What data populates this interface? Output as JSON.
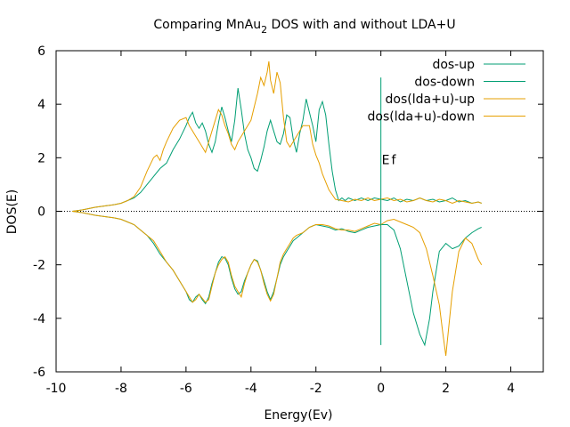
{
  "chart_data": {
    "type": "line",
    "title_main": "Comparing MnAu",
    "title_sub": "2",
    "title_rest": " DOS with and without LDA+U",
    "xlabel": "Energy(Ev)",
    "ylabel": "DOS(E)",
    "xlim": [
      -10,
      5
    ],
    "ylim": [
      -6,
      6
    ],
    "xticks": [
      "-10",
      "-8",
      "-6",
      "-4",
      "-2",
      "0",
      "2",
      "4"
    ],
    "yticks": [
      "-6",
      "-4",
      "-2",
      "0",
      "2",
      "4",
      "6"
    ],
    "grid": false,
    "legend_position": "top-right",
    "fermi_label": "Ef",
    "fermi_line": {
      "x": 0,
      "y_from": -5,
      "y_to": 5,
      "color": "#009e73"
    },
    "zero_line": {
      "y": 0,
      "style": "dotted",
      "color": "#000000"
    },
    "series": [
      {
        "name": "dos-up",
        "color": "#009e73",
        "x": [
          -9.5,
          -9.2,
          -9.0,
          -8.8,
          -8.5,
          -8.2,
          -8.0,
          -7.8,
          -7.6,
          -7.4,
          -7.2,
          -7.0,
          -6.8,
          -6.6,
          -6.4,
          -6.2,
          -6.0,
          -5.9,
          -5.8,
          -5.7,
          -5.6,
          -5.5,
          -5.4,
          -5.3,
          -5.2,
          -5.1,
          -5.0,
          -4.9,
          -4.8,
          -4.7,
          -4.6,
          -4.5,
          -4.4,
          -4.3,
          -4.2,
          -4.1,
          -4.0,
          -3.9,
          -3.8,
          -3.7,
          -3.6,
          -3.5,
          -3.4,
          -3.3,
          -3.2,
          -3.1,
          -3.0,
          -2.9,
          -2.8,
          -2.7,
          -2.6,
          -2.5,
          -2.4,
          -2.3,
          -2.2,
          -2.1,
          -2.0,
          -1.9,
          -1.8,
          -1.7,
          -1.6,
          -1.5,
          -1.4,
          -1.3,
          -1.2,
          -1.1,
          -1.0,
          -0.8,
          -0.6,
          -0.4,
          -0.2,
          0.0,
          0.2,
          0.4,
          0.6,
          0.8,
          1.0,
          1.2,
          1.4,
          1.6,
          1.8,
          2.0,
          2.2,
          2.4,
          2.6,
          2.8,
          3.0,
          3.1
        ],
        "values": [
          0.0,
          0.05,
          0.1,
          0.15,
          0.2,
          0.25,
          0.3,
          0.4,
          0.5,
          0.7,
          1.0,
          1.3,
          1.6,
          1.8,
          2.3,
          2.7,
          3.2,
          3.5,
          3.7,
          3.3,
          3.1,
          3.3,
          3.0,
          2.5,
          2.2,
          2.6,
          3.3,
          3.9,
          3.5,
          3.0,
          2.6,
          3.4,
          4.6,
          3.8,
          2.9,
          2.3,
          2.0,
          1.6,
          1.5,
          1.9,
          2.4,
          3.0,
          3.4,
          3.0,
          2.6,
          2.5,
          2.9,
          3.6,
          3.5,
          2.7,
          2.2,
          2.9,
          3.4,
          4.2,
          3.7,
          3.2,
          2.6,
          3.8,
          4.1,
          3.6,
          2.5,
          1.5,
          0.8,
          0.4,
          0.5,
          0.4,
          0.5,
          0.4,
          0.5,
          0.4,
          0.5,
          0.45,
          0.4,
          0.5,
          0.35,
          0.45,
          0.4,
          0.5,
          0.4,
          0.45,
          0.35,
          0.4,
          0.5,
          0.35,
          0.4,
          0.3,
          0.35,
          0.3
        ]
      },
      {
        "name": "dos-down",
        "color": "#009e73",
        "x": [
          -9.5,
          -9.2,
          -9.0,
          -8.8,
          -8.5,
          -8.2,
          -8.0,
          -7.8,
          -7.6,
          -7.4,
          -7.2,
          -7.0,
          -6.8,
          -6.6,
          -6.4,
          -6.2,
          -6.0,
          -5.9,
          -5.8,
          -5.7,
          -5.6,
          -5.5,
          -5.4,
          -5.3,
          -5.2,
          -5.1,
          -5.0,
          -4.9,
          -4.8,
          -4.7,
          -4.6,
          -4.5,
          -4.4,
          -4.3,
          -4.2,
          -4.1,
          -4.0,
          -3.9,
          -3.8,
          -3.7,
          -3.6,
          -3.5,
          -3.4,
          -3.3,
          -3.2,
          -3.1,
          -3.0,
          -2.9,
          -2.8,
          -2.7,
          -2.6,
          -2.4,
          -2.2,
          -2.0,
          -1.8,
          -1.6,
          -1.4,
          -1.2,
          -1.0,
          -0.8,
          -0.6,
          -0.4,
          -0.2,
          0.0,
          0.2,
          0.4,
          0.6,
          0.8,
          1.0,
          1.2,
          1.35,
          1.5,
          1.6,
          1.8,
          2.0,
          2.2,
          2.4,
          2.6,
          2.8,
          3.0,
          3.1
        ],
        "values": [
          0.0,
          -0.05,
          -0.1,
          -0.15,
          -0.2,
          -0.25,
          -0.3,
          -0.4,
          -0.5,
          -0.7,
          -0.9,
          -1.2,
          -1.6,
          -1.9,
          -2.2,
          -2.6,
          -3.0,
          -3.3,
          -3.4,
          -3.2,
          -3.1,
          -3.3,
          -3.45,
          -3.2,
          -2.7,
          -2.3,
          -1.9,
          -1.7,
          -1.75,
          -2.0,
          -2.5,
          -2.9,
          -3.1,
          -3.0,
          -2.6,
          -2.3,
          -2.0,
          -1.8,
          -1.85,
          -2.2,
          -2.6,
          -3.0,
          -3.3,
          -3.0,
          -2.5,
          -2.0,
          -1.7,
          -1.5,
          -1.3,
          -1.1,
          -1.0,
          -0.8,
          -0.6,
          -0.5,
          -0.55,
          -0.6,
          -0.7,
          -0.65,
          -0.75,
          -0.8,
          -0.7,
          -0.6,
          -0.55,
          -0.5,
          -0.5,
          -0.7,
          -1.4,
          -2.6,
          -3.8,
          -4.6,
          -5.0,
          -4.0,
          -3.0,
          -1.5,
          -1.2,
          -1.4,
          -1.3,
          -1.0,
          -0.8,
          -0.65,
          -0.6
        ]
      },
      {
        "name": "dos(lda+u)-up",
        "color": "#e69f00",
        "x": [
          -9.5,
          -9.2,
          -9.0,
          -8.8,
          -8.5,
          -8.2,
          -8.0,
          -7.8,
          -7.6,
          -7.4,
          -7.2,
          -7.0,
          -6.9,
          -6.8,
          -6.7,
          -6.6,
          -6.4,
          -6.2,
          -6.0,
          -5.9,
          -5.8,
          -5.7,
          -5.6,
          -5.5,
          -5.4,
          -5.3,
          -5.2,
          -5.1,
          -5.0,
          -4.9,
          -4.8,
          -4.7,
          -4.6,
          -4.5,
          -4.4,
          -4.3,
          -4.2,
          -4.0,
          -3.8,
          -3.7,
          -3.6,
          -3.5,
          -3.45,
          -3.4,
          -3.3,
          -3.2,
          -3.1,
          -3.0,
          -2.9,
          -2.8,
          -2.6,
          -2.4,
          -2.2,
          -2.1,
          -2.0,
          -1.9,
          -1.8,
          -1.6,
          -1.4,
          -1.2,
          -1.0,
          -0.8,
          -0.6,
          -0.4,
          -0.2,
          0.0,
          0.2,
          0.4,
          0.6,
          0.8,
          1.0,
          1.2,
          1.4,
          1.6,
          1.8,
          2.0,
          2.2,
          2.4,
          2.6,
          2.8,
          3.0,
          3.1
        ],
        "values": [
          0.0,
          0.05,
          0.1,
          0.15,
          0.2,
          0.25,
          0.3,
          0.4,
          0.55,
          0.9,
          1.5,
          2.0,
          2.1,
          1.9,
          2.3,
          2.6,
          3.1,
          3.4,
          3.5,
          3.2,
          3.0,
          2.8,
          2.6,
          2.4,
          2.2,
          2.6,
          3.0,
          3.4,
          3.8,
          3.6,
          3.2,
          2.9,
          2.5,
          2.3,
          2.6,
          2.8,
          3.0,
          3.4,
          4.4,
          5.0,
          4.7,
          5.2,
          5.6,
          4.9,
          4.4,
          5.2,
          4.8,
          3.5,
          2.6,
          2.4,
          2.8,
          3.2,
          3.2,
          2.5,
          2.1,
          1.8,
          1.4,
          0.8,
          0.45,
          0.4,
          0.35,
          0.45,
          0.4,
          0.5,
          0.4,
          0.45,
          0.5,
          0.4,
          0.45,
          0.35,
          0.4,
          0.5,
          0.4,
          0.35,
          0.45,
          0.4,
          0.3,
          0.4,
          0.35,
          0.3,
          0.35,
          0.3
        ]
      },
      {
        "name": "dos(lda+u)-down",
        "color": "#e69f00",
        "x": [
          -9.5,
          -9.2,
          -9.0,
          -8.8,
          -8.5,
          -8.2,
          -8.0,
          -7.8,
          -7.6,
          -7.4,
          -7.2,
          -7.0,
          -6.8,
          -6.6,
          -6.4,
          -6.2,
          -6.0,
          -5.9,
          -5.8,
          -5.7,
          -5.6,
          -5.5,
          -5.4,
          -5.3,
          -5.2,
          -5.1,
          -5.0,
          -4.9,
          -4.8,
          -4.7,
          -4.6,
          -4.5,
          -4.4,
          -4.3,
          -4.2,
          -4.1,
          -4.0,
          -3.9,
          -3.8,
          -3.7,
          -3.6,
          -3.5,
          -3.4,
          -3.3,
          -3.2,
          -3.1,
          -3.0,
          -2.9,
          -2.8,
          -2.7,
          -2.6,
          -2.4,
          -2.2,
          -2.0,
          -1.8,
          -1.6,
          -1.4,
          -1.2,
          -1.0,
          -0.8,
          -0.6,
          -0.4,
          -0.2,
          0.0,
          0.2,
          0.4,
          0.6,
          0.8,
          1.0,
          1.2,
          1.4,
          1.6,
          1.8,
          1.9,
          2.0,
          2.2,
          2.4,
          2.6,
          2.8,
          3.0,
          3.1
        ],
        "values": [
          0.0,
          -0.05,
          -0.1,
          -0.15,
          -0.2,
          -0.25,
          -0.3,
          -0.4,
          -0.5,
          -0.7,
          -0.9,
          -1.1,
          -1.5,
          -1.9,
          -2.2,
          -2.6,
          -3.0,
          -3.2,
          -3.4,
          -3.3,
          -3.1,
          -3.25,
          -3.4,
          -3.3,
          -2.8,
          -2.3,
          -2.0,
          -1.8,
          -1.7,
          -1.9,
          -2.4,
          -2.8,
          -3.0,
          -3.2,
          -2.7,
          -2.3,
          -2.0,
          -1.8,
          -1.9,
          -2.2,
          -2.7,
          -3.1,
          -3.35,
          -3.1,
          -2.5,
          -1.9,
          -1.6,
          -1.4,
          -1.2,
          -1.0,
          -0.9,
          -0.8,
          -0.6,
          -0.5,
          -0.5,
          -0.55,
          -0.65,
          -0.7,
          -0.7,
          -0.75,
          -0.65,
          -0.55,
          -0.45,
          -0.5,
          -0.35,
          -0.3,
          -0.4,
          -0.5,
          -0.6,
          -0.8,
          -1.4,
          -2.4,
          -3.5,
          -4.5,
          -5.4,
          -3.0,
          -1.5,
          -1.0,
          -1.2,
          -1.8,
          -2.0
        ]
      }
    ]
  }
}
